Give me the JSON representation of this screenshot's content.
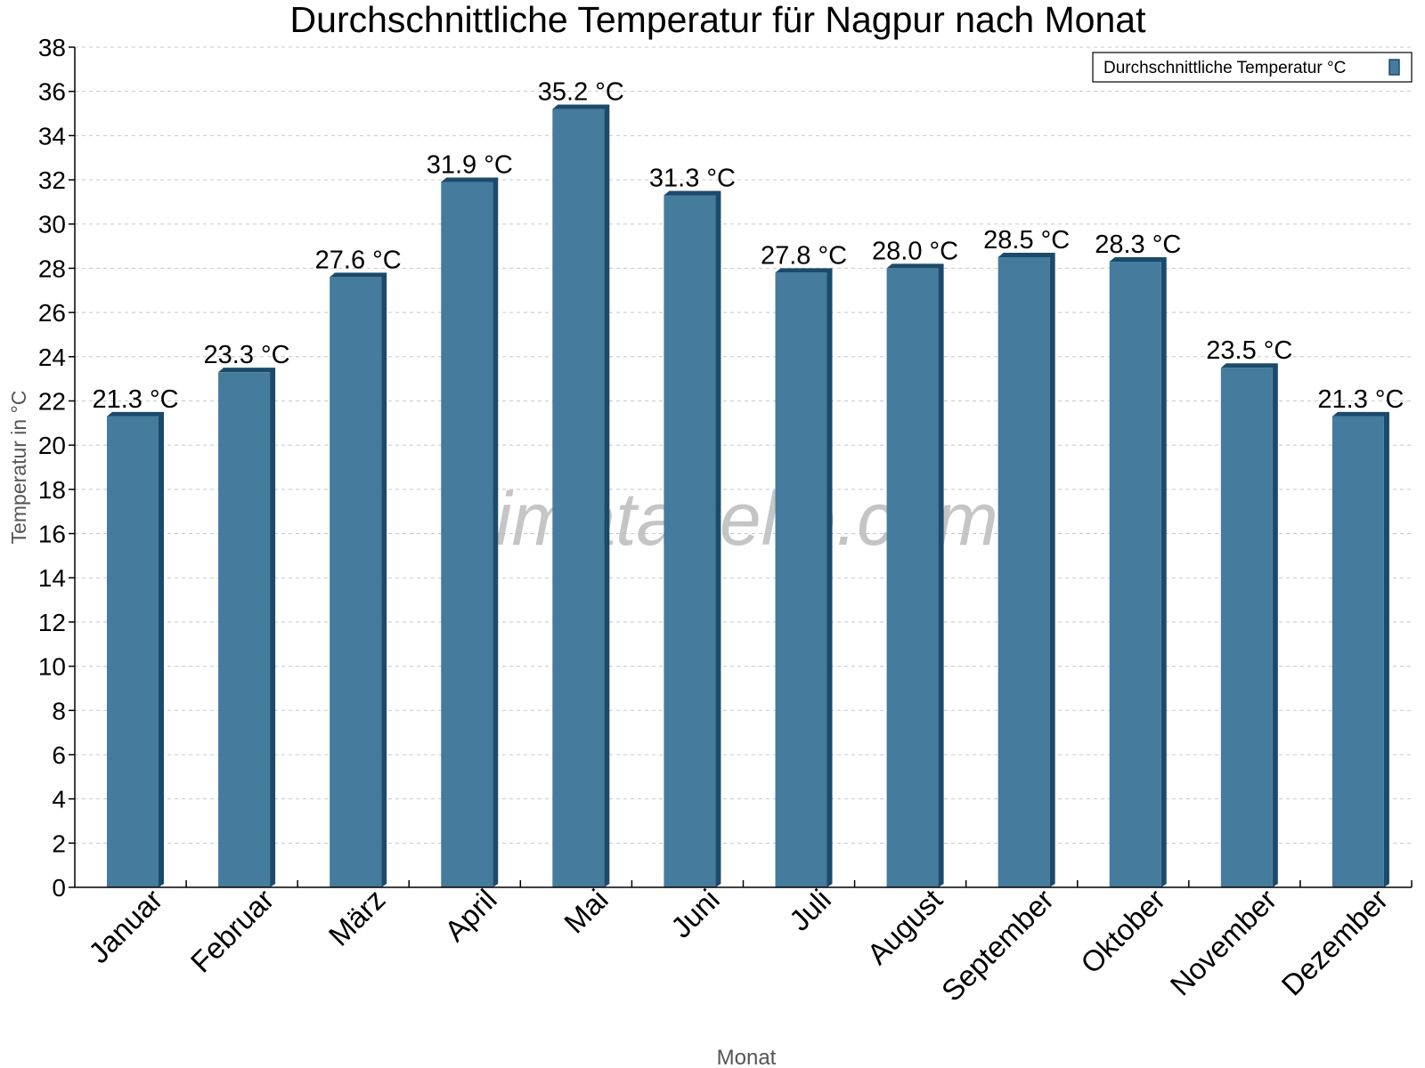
{
  "chart_data": {
    "type": "bar",
    "title": "Durchschnittliche Temperatur für Nagpur nach Monat",
    "xlabel": "Monat",
    "ylabel": "Temperatur in °C",
    "categories": [
      "Januar",
      "Februar",
      "März",
      "April",
      "Mai",
      "Juni",
      "Juli",
      "August",
      "September",
      "Oktober",
      "November",
      "Dezember"
    ],
    "series": [
      {
        "name": "Durchschnittliche Temperatur °C",
        "values": [
          21.3,
          23.3,
          27.6,
          31.9,
          35.2,
          31.3,
          27.8,
          28.0,
          28.5,
          28.3,
          23.5,
          21.3
        ]
      }
    ],
    "data_labels": [
      "21.3 °C",
      "23.3 °C",
      "27.6 °C",
      "31.9 °C",
      "35.2 °C",
      "31.3 °C",
      "27.8 °C",
      "28.0 °C",
      "28.5 °C",
      "28.3 °C",
      "23.5 °C",
      "21.3 °C"
    ],
    "ylim": [
      0,
      38
    ],
    "yticks": [
      0,
      2,
      4,
      6,
      8,
      10,
      12,
      14,
      16,
      18,
      20,
      22,
      24,
      26,
      28,
      30,
      32,
      34,
      36,
      38
    ],
    "grid": true,
    "legend_position": "top-right",
    "colors": {
      "bar": "#457b9d",
      "bar_edge": "#1b4a6b",
      "grid": "#c8c8c8",
      "axis_label": "#555555",
      "watermark": "#bbbbbb"
    },
    "watermark": "klimatabelle.com"
  }
}
